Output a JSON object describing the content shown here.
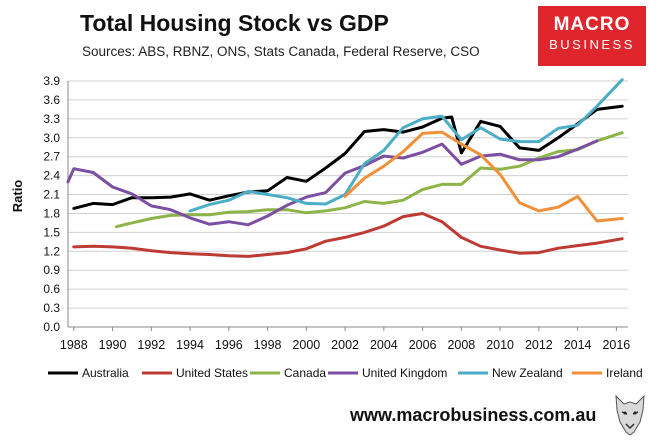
{
  "header": {
    "title": "Total Housing Stock vs GDP",
    "subtitle": "Sources: ABS, RBNZ, ONS, Stats Canada, Federal Reserve, CSO"
  },
  "logo": {
    "line1": "MACRO",
    "line2": "BUSINESS",
    "color": "#e0262d"
  },
  "footer": {
    "url": "www.macrobusiness.com.au"
  },
  "chart_data": {
    "type": "line",
    "ylabel": "Ratio",
    "xlabel": "",
    "ylim": [
      0,
      3.9
    ],
    "yticks": [
      "0.0",
      "0.3",
      "0.6",
      "0.9",
      "1.2",
      "1.5",
      "1.8",
      "2.1",
      "2.4",
      "2.7",
      "3.0",
      "3.3",
      "3.6",
      "3.9"
    ],
    "xlim": [
      1987.7,
      2016.6
    ],
    "xticks": [
      "1988",
      "1990",
      "1992",
      "1994",
      "1996",
      "1998",
      "2000",
      "2002",
      "2004",
      "2006",
      "2008",
      "2010",
      "2012",
      "2014",
      "2016"
    ],
    "grid": true,
    "legend_position": "bottom",
    "series": [
      {
        "name": "Australia",
        "color": "#000000",
        "x": [
          1988,
          1989,
          1990,
          1991,
          1992,
          1993,
          1994,
          1995,
          1996,
          1997,
          1998,
          1999,
          2000,
          2001,
          2002,
          2003,
          2004,
          2005,
          2006,
          2007,
          2007.5,
          2008,
          2009,
          2010,
          2011,
          2012,
          2013,
          2014,
          2015,
          2016.3
        ],
        "y": [
          1.88,
          1.96,
          1.94,
          2.05,
          2.05,
          2.06,
          2.11,
          2.01,
          2.08,
          2.14,
          2.16,
          2.37,
          2.31,
          2.52,
          2.75,
          3.1,
          3.13,
          3.09,
          3.17,
          3.31,
          3.33,
          2.76,
          3.26,
          3.18,
          2.84,
          2.8,
          3.0,
          3.22,
          3.45,
          3.5
        ]
      },
      {
        "name": "United States",
        "color": "#be3b34",
        "x": [
          1988,
          1989,
          1990,
          1991,
          1992,
          1993,
          1994,
          1995,
          1996,
          1997,
          1998,
          1999,
          2000,
          2001,
          2002,
          2003,
          2004,
          2005,
          2006,
          2007,
          2008,
          2009,
          2010,
          2011,
          2012,
          2013,
          2014,
          2015,
          2016.3
        ],
        "y": [
          1.27,
          1.28,
          1.27,
          1.25,
          1.21,
          1.18,
          1.16,
          1.15,
          1.13,
          1.12,
          1.15,
          1.18,
          1.24,
          1.36,
          1.42,
          1.5,
          1.6,
          1.75,
          1.8,
          1.67,
          1.42,
          1.28,
          1.22,
          1.17,
          1.18,
          1.25,
          1.29,
          1.33,
          1.4
        ]
      },
      {
        "name": "Canada",
        "color": "#8db449",
        "x": [
          1990.2,
          1991,
          1992,
          1993,
          1994,
          1995,
          1996,
          1997,
          1998,
          1999,
          2000,
          2001,
          2002,
          2003,
          2004,
          2005,
          2006,
          2007,
          2008,
          2009,
          2010,
          2011,
          2012,
          2013,
          2014,
          2015,
          2016.3
        ],
        "y": [
          1.59,
          1.65,
          1.72,
          1.77,
          1.78,
          1.78,
          1.82,
          1.83,
          1.86,
          1.86,
          1.81,
          1.84,
          1.89,
          1.99,
          1.96,
          2.01,
          2.18,
          2.26,
          2.26,
          2.52,
          2.5,
          2.55,
          2.68,
          2.78,
          2.81,
          2.95,
          3.08
        ]
      },
      {
        "name": "United Kingdom",
        "color": "#7b4fa1",
        "x": [
          1987.7,
          1988,
          1989,
          1990,
          1991,
          1992,
          1993,
          1994,
          1995,
          1996,
          1997,
          1998,
          1999,
          2000,
          2001,
          2002,
          2003,
          2004,
          2005,
          2006,
          2007,
          2008,
          2009,
          2010,
          2011,
          2012,
          2013,
          2014,
          2015
        ],
        "y": [
          2.3,
          2.51,
          2.45,
          2.22,
          2.11,
          1.92,
          1.86,
          1.73,
          1.63,
          1.67,
          1.62,
          1.76,
          1.93,
          2.06,
          2.13,
          2.44,
          2.56,
          2.71,
          2.68,
          2.77,
          2.9,
          2.58,
          2.71,
          2.74,
          2.65,
          2.65,
          2.7,
          2.82,
          2.95
        ]
      },
      {
        "name": "New Zealand",
        "color": "#4baec6",
        "x": [
          1994,
          1995,
          1996,
          1997,
          1998,
          1999,
          2000,
          2001,
          2002,
          2003,
          2004,
          2005,
          2006,
          2007,
          2008,
          2009,
          2010,
          2011,
          2012,
          2013,
          2014,
          2015,
          2016.3
        ],
        "y": [
          1.84,
          1.94,
          2.01,
          2.15,
          2.1,
          2.05,
          1.96,
          1.95,
          2.1,
          2.59,
          2.8,
          3.16,
          3.3,
          3.34,
          2.97,
          3.16,
          2.98,
          2.94,
          2.94,
          3.15,
          3.2,
          3.5,
          3.92
        ]
      },
      {
        "name": "Ireland",
        "color": "#f0913a",
        "x": [
          2002,
          2003,
          2004,
          2005,
          2006,
          2007,
          2008,
          2009,
          2010,
          2011,
          2012,
          2013,
          2014,
          2015,
          2016.3
        ],
        "y": [
          2.07,
          2.36,
          2.55,
          2.78,
          3.07,
          3.09,
          2.9,
          2.73,
          2.42,
          1.97,
          1.84,
          1.9,
          2.07,
          1.68,
          1.72
        ]
      }
    ]
  }
}
